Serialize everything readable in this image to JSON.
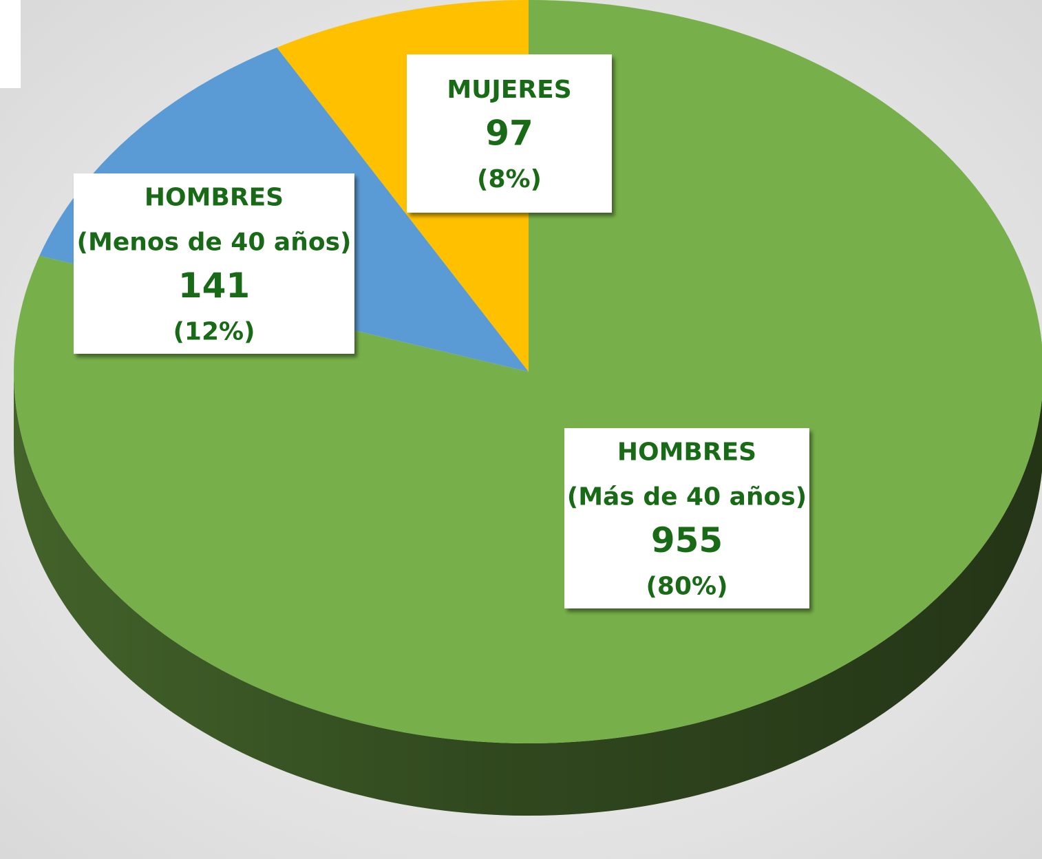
{
  "chart_data": {
    "type": "pie",
    "categories": [
      [
        "HOMBRES",
        "(Más de 40 años)"
      ],
      [
        "HOMBRES",
        "(Menos de 40 años)"
      ],
      [
        "MUJERES"
      ]
    ],
    "values": [
      955,
      141,
      97
    ],
    "percent_labels": [
      "(80%)",
      "(12%)",
      "(8%)"
    ],
    "colors": [
      "#77b04a",
      "#5b9bd5",
      "#ffc000"
    ],
    "label_color": "#186a16"
  }
}
